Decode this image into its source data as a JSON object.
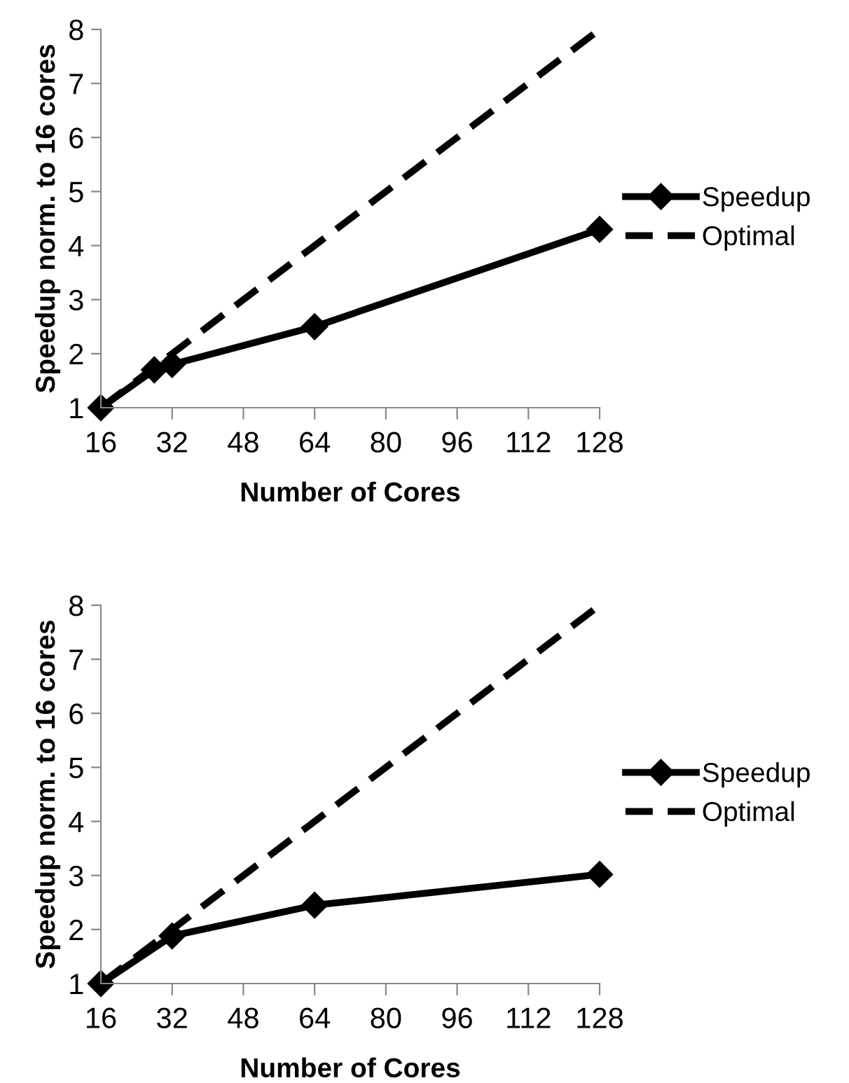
{
  "chart_data": [
    {
      "type": "line",
      "xlabel": "Number of Cores",
      "ylabel": "Speedup norm. to 16 cores",
      "xlim": [
        16,
        128
      ],
      "xticks": [
        16,
        32,
        48,
        64,
        80,
        96,
        112,
        128
      ],
      "ylim": [
        1,
        8
      ],
      "yticks": [
        1,
        2,
        3,
        4,
        5,
        6,
        7,
        8
      ],
      "grid": false,
      "legend": "right",
      "series": [
        {
          "name": "Speedup",
          "color": "#000000",
          "x": [
            16,
            28,
            32,
            64,
            128
          ],
          "values": [
            1,
            1.7,
            1.8,
            2.5,
            4.3
          ],
          "marker": "diamond",
          "line_style": "solid"
        },
        {
          "name": "Optimal",
          "color": "#000000",
          "x": [
            16,
            32,
            64,
            128
          ],
          "values": [
            1,
            2,
            4,
            8
          ],
          "marker": "none",
          "line_style": "dashed"
        }
      ]
    },
    {
      "type": "line",
      "xlabel": "Number of Cores",
      "ylabel": "Speedup norm. to 16 cores",
      "xlim": [
        16,
        128
      ],
      "xticks": [
        16,
        32,
        48,
        64,
        80,
        96,
        112,
        128
      ],
      "ylim": [
        1,
        8
      ],
      "yticks": [
        1,
        2,
        3,
        4,
        5,
        6,
        7,
        8
      ],
      "grid": false,
      "legend": "right",
      "series": [
        {
          "name": "Speedup",
          "color": "#000000",
          "x": [
            16,
            32,
            64,
            128
          ],
          "values": [
            1,
            1.88,
            2.45,
            3.02
          ],
          "marker": "diamond",
          "line_style": "solid"
        },
        {
          "name": "Optimal",
          "color": "#000000",
          "x": [
            16,
            32,
            64,
            128
          ],
          "values": [
            1,
            2,
            4,
            8
          ],
          "marker": "none",
          "line_style": "dashed"
        }
      ]
    }
  ]
}
